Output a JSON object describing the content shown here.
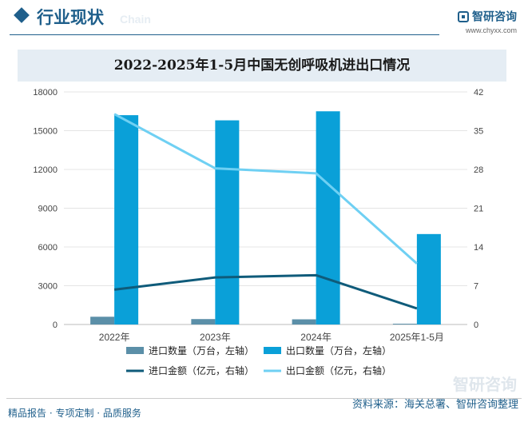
{
  "header": {
    "section_title": "行业现状",
    "ghost_text": "Chain",
    "brand_name": "智研咨询",
    "brand_url": "www.chyxx.com"
  },
  "chart_data": {
    "type": "bar",
    "title": "2022-2025年1-5月中国无创呼吸机进出口情况",
    "categories": [
      "2022年",
      "2023年",
      "2024年",
      "2025年1-5月"
    ],
    "y_left": {
      "min": 0,
      "max": 18000,
      "ticks": [
        0,
        3000,
        6000,
        9000,
        12000,
        15000,
        18000
      ]
    },
    "y_right": {
      "min": 0,
      "max": 42,
      "ticks": [
        0,
        7,
        14,
        21,
        28,
        35,
        42
      ]
    },
    "bars": [
      {
        "name": "进口数量（万台，左轴）",
        "color": "#5b8fa8",
        "axis": "left",
        "values": [
          600,
          420,
          400,
          60
        ]
      },
      {
        "name": "出口数量（万台，左轴）",
        "color": "#0aa0d8",
        "axis": "left",
        "values": [
          16200,
          15800,
          16500,
          7000
        ]
      }
    ],
    "lines": [
      {
        "name": "进口金额（亿元，右轴）",
        "color": "#0f5b7a",
        "axis": "right",
        "values": [
          6.3,
          8.5,
          8.9,
          2.9
        ]
      },
      {
        "name": "出口金额（亿元，右轴）",
        "color": "#6fd0f3",
        "axis": "right",
        "values": [
          38.0,
          28.2,
          27.3,
          11.0
        ]
      }
    ],
    "grid": true,
    "legend_position": "bottom"
  },
  "footer": {
    "left": "精品报告 · 专项定制 · 品质服务",
    "source": "资料来源：海关总署、智研咨询整理",
    "brand": "智研咨询"
  }
}
